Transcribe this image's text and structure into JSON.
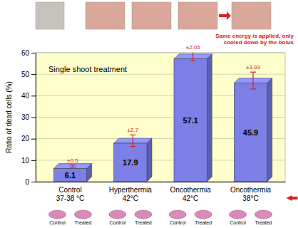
{
  "chart_data": {
    "type": "bar",
    "annotations": [
      "Single shoot treatment",
      "Same energy is applied, only cooled down by the bolus"
    ],
    "y_label": "Ratio of dead cells (%)",
    "categories": [
      "Control\n37-38 °C",
      "Hyperthermia\n42°C",
      "Oncothermia\n42°C",
      "Oncothermia\n38°C"
    ],
    "values": [
      6.1,
      17.9,
      57.1,
      45.9
    ],
    "errors": [
      0.5,
      2.7,
      2.05,
      3.93
    ],
    "error_labels": [
      "±0.5",
      "±2.7",
      "±2.05",
      "±3.93"
    ],
    "color": "#7b7fe6",
    "ylim": [
      0,
      60
    ],
    "yticks": [
      0,
      10,
      20,
      30,
      40,
      50,
      60
    ],
    "grid": true,
    "data_labels": true,
    "image_captions": [
      "Control",
      "Treated",
      "Control",
      "Treated",
      "Control",
      "Treated",
      "Control",
      "Treated"
    ]
  }
}
